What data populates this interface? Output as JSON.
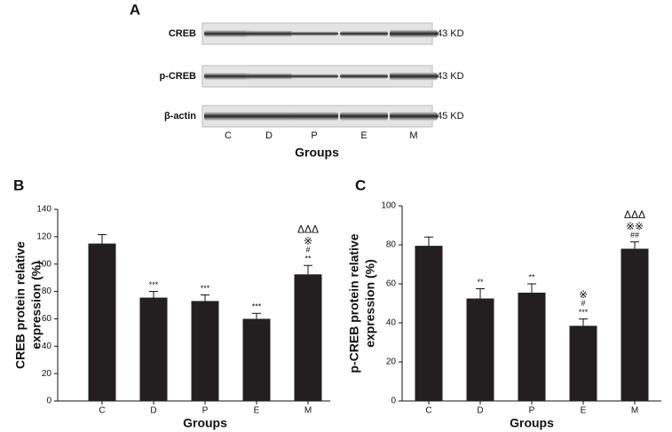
{
  "blot": {
    "label": "A",
    "rows": [
      {
        "name": "CREB",
        "size": "43 KD"
      },
      {
        "name": "p-CREB",
        "size": "43 KD"
      },
      {
        "name": "β-actin",
        "size": "45 KD"
      }
    ],
    "lanes": [
      "C",
      "D",
      "P",
      "E",
      "M"
    ],
    "xlabel": "Groups"
  },
  "chart_data": [
    {
      "type": "bar",
      "panel": "B",
      "ylabel": [
        "CREB protein relative",
        "expression (%)"
      ],
      "xlabel": "Groups",
      "categories": [
        "C",
        "D",
        "P",
        "E",
        "M"
      ],
      "values": [
        115,
        75.5,
        73,
        60,
        92.5
      ],
      "errors": [
        6.5,
        4.5,
        4.5,
        4,
        6.5
      ],
      "significance": [
        [],
        [
          "***"
        ],
        [
          "***"
        ],
        [
          "***"
        ],
        [
          "ΔΔΔ",
          "※",
          "#",
          "**"
        ]
      ],
      "color": "#231f20",
      "ylim": [
        0,
        140
      ],
      "yticks": [
        0,
        20,
        40,
        60,
        80,
        100,
        120,
        140
      ],
      "grid": false
    },
    {
      "type": "bar",
      "panel": "C",
      "ylabel": [
        "p-CREB protein relative",
        "expression (%)"
      ],
      "xlabel": "Groups",
      "categories": [
        "C",
        "D",
        "P",
        "E",
        "M"
      ],
      "values": [
        79.5,
        52.5,
        55.5,
        38.5,
        78
      ],
      "errors": [
        4.5,
        5,
        4.5,
        3.5,
        3.5
      ],
      "significance": [
        [],
        [
          "**"
        ],
        [
          "**"
        ],
        [
          "※",
          "#",
          "***"
        ],
        [
          "ΔΔΔ",
          "※※",
          "##"
        ]
      ],
      "color": "#231f20",
      "ylim": [
        0,
        100
      ],
      "yticks": [
        0,
        20,
        40,
        60,
        80,
        100
      ],
      "grid": false
    }
  ]
}
